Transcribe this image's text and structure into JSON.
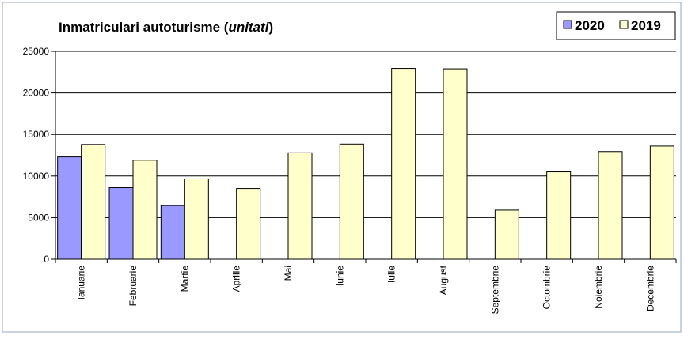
{
  "chart_data": {
    "type": "bar",
    "title_main": "Inmatriculari autoturisme (",
    "title_unit": "unitati",
    "title_end": ")",
    "categories": [
      "Ianuarie",
      "Februarie",
      "Martie",
      "Aprilie",
      "Mai",
      "Iunie",
      "Iulie",
      "August",
      "Septembrie",
      "Octombrie",
      "Noiembrie",
      "Decembrie"
    ],
    "series": [
      {
        "name": "2020",
        "color": "#9999ff",
        "values": [
          12300,
          8600,
          6450,
          null,
          null,
          null,
          null,
          null,
          null,
          null,
          null,
          null
        ]
      },
      {
        "name": "2019",
        "color": "#ffffcc",
        "values": [
          13800,
          11900,
          9650,
          8500,
          12800,
          13850,
          22950,
          22900,
          5900,
          10500,
          12950,
          13600
        ]
      }
    ],
    "yticks": [
      "25000",
      "20000",
      "15000",
      "10000",
      "5000",
      "0"
    ],
    "ylim": [
      0,
      25000
    ],
    "grid": true,
    "legend_position": "top-right"
  }
}
